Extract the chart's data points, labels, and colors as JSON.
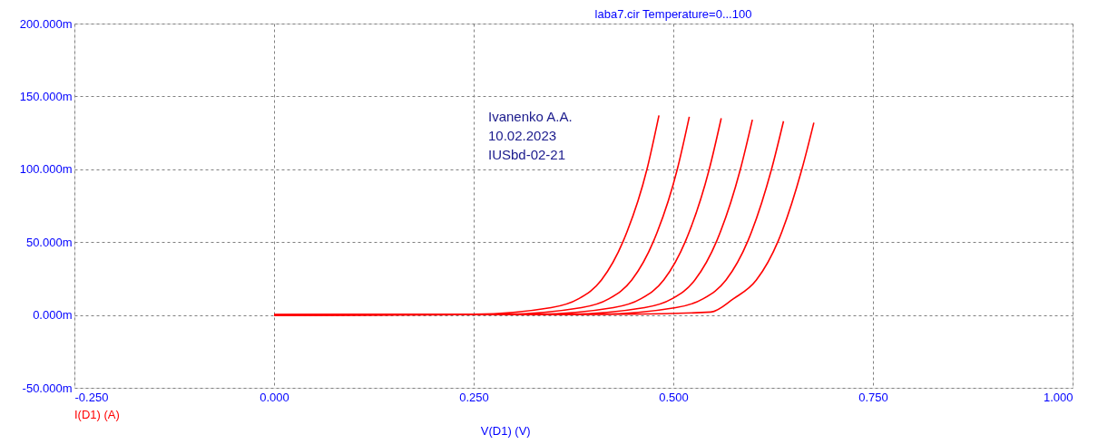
{
  "chart_data": {
    "type": "line",
    "title": "laba7.cir Temperature=0...100",
    "xlabel": "V(D1) (V)",
    "annotations": [
      "Ivanenko A.A.",
      "10.02.2023",
      "IUSbd-02-21",
      "I(D1) (A)"
    ],
    "xlim": [
      -0.25,
      1.0
    ],
    "xticks": [
      {
        "value": -0.25,
        "label": "-0.250"
      },
      {
        "value": 0,
        "label": "0.000"
      },
      {
        "value": 0.25,
        "label": "0.250"
      },
      {
        "value": 0.5,
        "label": "0.500"
      },
      {
        "value": 0.75,
        "label": "0.750"
      },
      {
        "value": 1.0,
        "label": "1.000"
      }
    ],
    "ylim": [
      -50,
      200
    ],
    "yticks": [
      {
        "value": -50,
        "label": "-50.000m"
      },
      {
        "value": 0,
        "label": "0.000m"
      },
      {
        "value": 50,
        "label": "50.000m"
      },
      {
        "value": 100,
        "label": "100.000m"
      },
      {
        "value": 150,
        "label": "150.000m"
      },
      {
        "value": 200,
        "label": "200.000m"
      }
    ],
    "grid": true,
    "legend": false,
    "marker": "none",
    "line_style": "solid",
    "series": [
      {
        "color": "#ff0000",
        "x": [
          0,
          0.25,
          0.347,
          0.381,
          0.41,
          0.4375,
          0.467,
          0.482
        ],
        "values": [
          0,
          0.5,
          5,
          11,
          24,
          51,
          100,
          137
        ]
      },
      {
        "color": "#ff0000",
        "x": [
          0,
          0.288,
          0.385,
          0.419,
          0.448,
          0.4755,
          0.505,
          0.52
        ],
        "values": [
          0,
          0.5,
          5,
          11,
          24,
          51,
          100,
          136
        ]
      },
      {
        "color": "#ff0000",
        "x": [
          0,
          0.328,
          0.425,
          0.459,
          0.488,
          0.5155,
          0.545,
          0.56
        ],
        "values": [
          0,
          0.5,
          5,
          11,
          24,
          51,
          100,
          135
        ]
      },
      {
        "color": "#ff0000",
        "x": [
          0,
          0.367,
          0.464,
          0.498,
          0.527,
          0.5545,
          0.584,
          0.599
        ],
        "values": [
          0,
          0.5,
          5,
          11,
          24,
          51,
          100,
          134
        ]
      },
      {
        "color": "#ff0000",
        "x": [
          0,
          0.406,
          0.503,
          0.537,
          0.566,
          0.5935,
          0.623,
          0.638
        ],
        "values": [
          0,
          0.5,
          5,
          11,
          24,
          51,
          100,
          133
        ]
      },
      {
        "color": "#ff0000",
        "x": [
          0,
          0.444,
          0.547,
          0.575,
          0.604,
          0.6315,
          0.661,
          0.676
        ],
        "values": [
          0,
          0.5,
          2,
          11,
          24,
          51,
          100,
          132
        ]
      }
    ]
  }
}
